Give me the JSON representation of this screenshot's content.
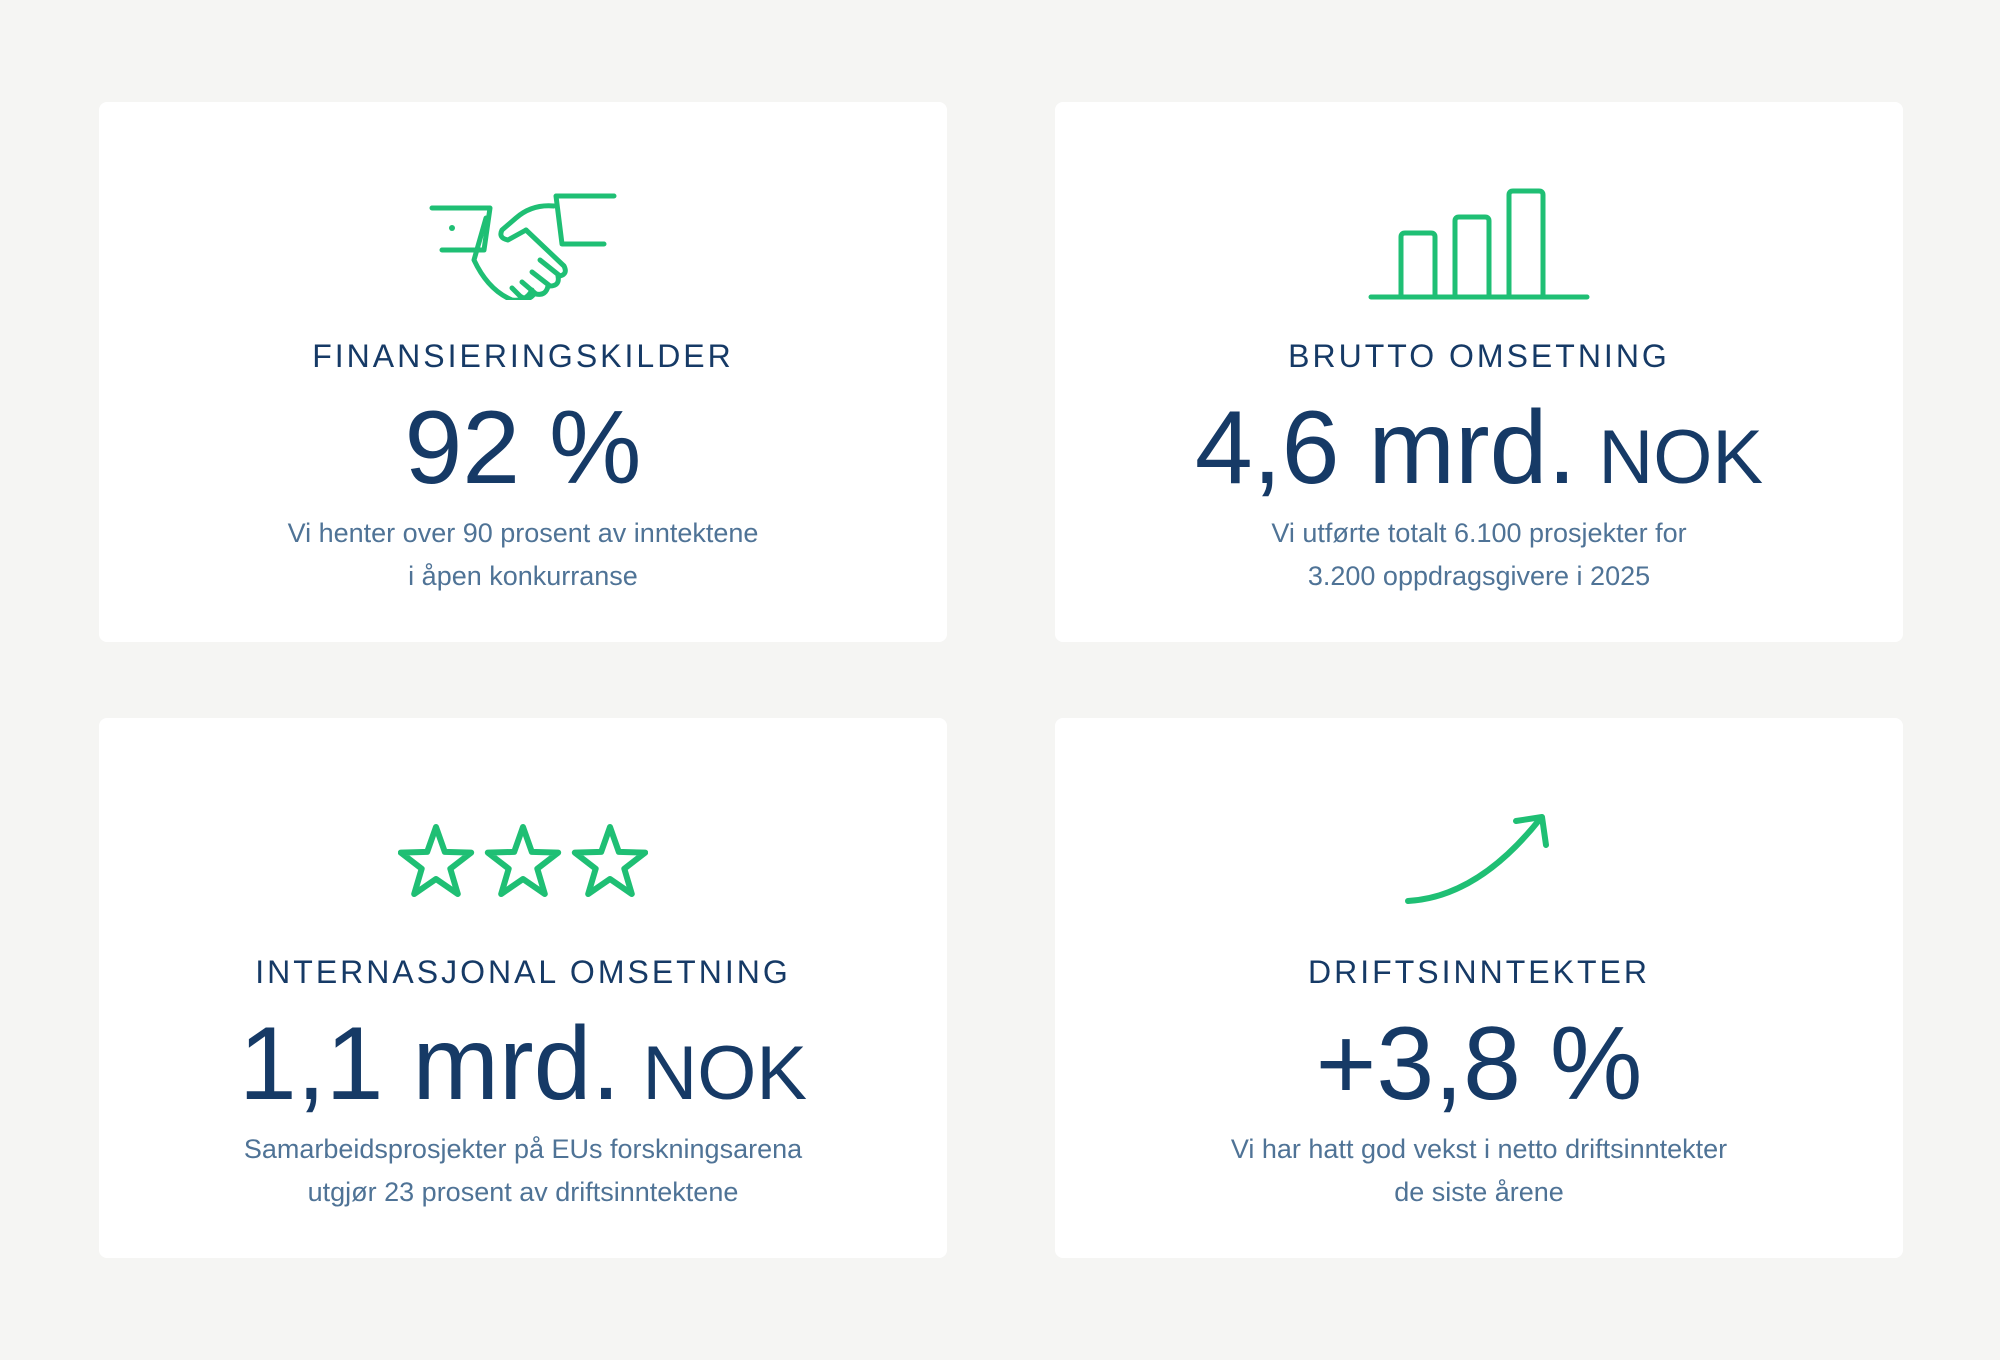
{
  "colors": {
    "background": "#f5f5f3",
    "card": "#ffffff",
    "navy": "#163a66",
    "text_muted": "#4f7396",
    "accent_green": "#1fbf74"
  },
  "cards": [
    {
      "icon": "handshake-icon",
      "heading": "FINANSIERINGSKILDER",
      "value": "92 %",
      "unit": "",
      "description": [
        "Vi henter over 90 prosent av inntektene",
        "i åpen konkurranse"
      ]
    },
    {
      "icon": "bar-chart-icon",
      "heading": "BRUTTO OMSETNING",
      "value": "4,6 mrd.",
      "unit": "NOK",
      "description": [
        "Vi utførte totalt 6.100 prosjekter for",
        "3.200 oppdragsgivere i 2025"
      ]
    },
    {
      "icon": "three-stars-icon",
      "heading": "INTERNASJONAL OMSETNING",
      "value": "1,1 mrd.",
      "unit": "NOK",
      "description": [
        "Samarbeidsprosjekter på EUs forskningsarena",
        "utgjør 23 prosent av driftsinntektene"
      ]
    },
    {
      "icon": "upward-arrow-icon",
      "heading": "DRIFTSINNTEKTER",
      "value": "+3,8 %",
      "unit": "",
      "description": [
        "Vi har hatt god vekst i netto driftsinntekter",
        "de siste årene"
      ]
    }
  ]
}
